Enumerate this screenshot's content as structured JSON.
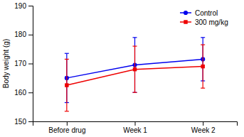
{
  "chart_data": {
    "type": "line",
    "categories": [
      "Before drug",
      "Week 1",
      "Week 2"
    ],
    "series": [
      {
        "name": "Control",
        "color": "#0000ee",
        "marker": "circle",
        "values": [
          165.0,
          169.5,
          171.5
        ],
        "errors": [
          8.5,
          9.5,
          7.5
        ]
      },
      {
        "name": "300 mg/kg",
        "color": "#ee0000",
        "marker": "square",
        "values": [
          162.5,
          168.0,
          169.0
        ],
        "errors": [
          9.0,
          8.0,
          7.5
        ]
      }
    ],
    "ylabel": "Body weight (g)",
    "ylim": [
      150,
      190
    ],
    "yticks": [
      150,
      160,
      170,
      180,
      190
    ],
    "grid": false,
    "legend": "upper right"
  }
}
